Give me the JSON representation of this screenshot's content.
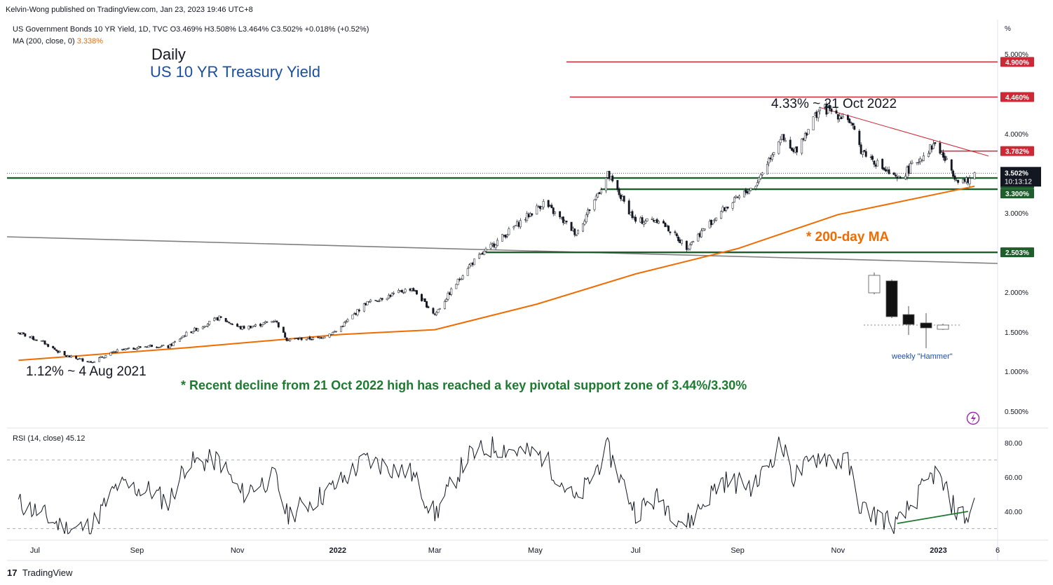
{
  "publisher": "Kelvin-Wong published on TradingView.com, Jan 23, 2023 19:46 UTC+8",
  "legend": {
    "series": "US Government Bonds 10 YR Yield, 1D, TVC",
    "ohlc": "O3.469% H3.508% L3.464% C3.502% +0.018% (+0.52%)",
    "ma_label": "MA (200, close, 0)",
    "ma_value": "3.338%",
    "rsi_label": "RSI (14, close)",
    "rsi_value": "45.12"
  },
  "annotations": {
    "daily": "Daily",
    "title": "US 10 YR Treasury Yield",
    "high": "4.33% ~ 21 Oct 2022",
    "low": "1.12% ~ 4 Aug 2021",
    "ma": "* 200-day MA",
    "note": "* Recent decline from 21 Oct 2022 high has reached a key pivotal support zone of 3.44%/3.30%",
    "hammer": "weekly \"Hammer\""
  },
  "footer": {
    "logo_mark": "17",
    "logo_text": "TradingView"
  },
  "colors": {
    "resistance": "#cc2936",
    "support": "#1e5e2a",
    "ma": "#ef6c00",
    "trend": "#808080",
    "candle": "#131722",
    "price_tag": "#131722"
  },
  "chart_data": [
    {
      "type": "candlestick",
      "name": "US 10 YR Treasury Yield",
      "unit": "%",
      "y_ticks": [
        "5.000%",
        "4.000%",
        "3.000%",
        "2.000%",
        "1.500%",
        "1.000%",
        "0.500%"
      ],
      "y_tick_values": [
        5.0,
        4.0,
        3.0,
        2.0,
        1.5,
        1.0,
        0.5
      ],
      "y_unit_label": "%",
      "x_ticks": [
        "Jul",
        "Sep",
        "Nov",
        "2022",
        "Mar",
        "May",
        "Jul",
        "Sep",
        "Nov",
        "2023",
        "6"
      ],
      "close_path": [
        [
          "2021-06-21",
          1.49
        ],
        [
          "2021-07-06",
          1.37
        ],
        [
          "2021-07-19",
          1.2
        ],
        [
          "2021-08-04",
          1.12
        ],
        [
          "2021-08-20",
          1.26
        ],
        [
          "2021-09-10",
          1.33
        ],
        [
          "2021-09-20",
          1.31
        ],
        [
          "2021-10-01",
          1.48
        ],
        [
          "2021-10-21",
          1.68
        ],
        [
          "2021-11-03",
          1.55
        ],
        [
          "2021-11-12",
          1.58
        ],
        [
          "2021-11-24",
          1.65
        ],
        [
          "2021-12-01",
          1.41
        ],
        [
          "2021-12-20",
          1.42
        ],
        [
          "2021-12-31",
          1.51
        ],
        [
          "2022-01-18",
          1.86
        ],
        [
          "2022-02-15",
          2.05
        ],
        [
          "2022-03-01",
          1.72
        ],
        [
          "2022-03-21",
          2.32
        ],
        [
          "2022-04-06",
          2.61
        ],
        [
          "2022-05-06",
          3.13
        ],
        [
          "2022-05-26",
          2.74
        ],
        [
          "2022-06-14",
          3.48
        ],
        [
          "2022-07-01",
          2.89
        ],
        [
          "2022-07-15",
          2.92
        ],
        [
          "2022-08-01",
          2.57
        ],
        [
          "2022-08-22",
          3.02
        ],
        [
          "2022-09-12",
          3.36
        ],
        [
          "2022-09-27",
          3.96
        ],
        [
          "2022-10-05",
          3.75
        ],
        [
          "2022-10-21",
          4.33
        ],
        [
          "2022-11-07",
          4.2
        ],
        [
          "2022-11-15",
          3.8
        ],
        [
          "2022-12-07",
          3.41
        ],
        [
          "2022-12-30",
          3.88
        ],
        [
          "2023-01-12",
          3.44
        ],
        [
          "2023-01-19",
          3.39
        ],
        [
          "2023-01-23",
          3.502
        ]
      ],
      "ma200_path": [
        [
          "2021-06-21",
          1.14
        ],
        [
          "2021-10-01",
          1.3
        ],
        [
          "2022-01-03",
          1.47
        ],
        [
          "2022-03-01",
          1.53
        ],
        [
          "2022-05-02",
          1.85
        ],
        [
          "2022-07-01",
          2.23
        ],
        [
          "2022-09-01",
          2.55
        ],
        [
          "2022-11-01",
          2.98
        ],
        [
          "2023-01-23",
          3.338
        ]
      ],
      "levels": [
        {
          "label": "4.900%",
          "value": 4.9,
          "role": "resistance"
        },
        {
          "label": "4.460%",
          "value": 4.46,
          "role": "resistance"
        },
        {
          "label": "3.782%",
          "value": 3.782,
          "role": "resistance"
        },
        {
          "label": "3.442%",
          "value": 3.442,
          "role": "support"
        },
        {
          "label": "3.300%",
          "value": 3.3,
          "role": "support"
        },
        {
          "label": "2.503%",
          "value": 2.503,
          "role": "support"
        }
      ],
      "last_price_label": "3.502%",
      "countdown": "10:13:12",
      "high": {
        "date": "2022-10-21",
        "value": 4.33
      },
      "low": {
        "date": "2021-08-04",
        "value": 1.12
      }
    },
    {
      "type": "line",
      "name": "RSI (14, close)",
      "y_ticks": [
        "80.00",
        "60.00",
        "40.00"
      ],
      "y_tick_values": [
        80,
        60,
        40
      ],
      "bands": [
        70,
        30
      ],
      "path": [
        [
          "2021-06-21",
          45
        ],
        [
          "2021-07-06",
          38
        ],
        [
          "2021-07-19",
          30
        ],
        [
          "2021-08-04",
          31
        ],
        [
          "2021-08-20",
          55
        ],
        [
          "2021-09-10",
          52
        ],
        [
          "2021-09-20",
          45
        ],
        [
          "2021-10-01",
          68
        ],
        [
          "2021-10-21",
          70
        ],
        [
          "2021-11-03",
          50
        ],
        [
          "2021-11-12",
          55
        ],
        [
          "2021-11-24",
          60
        ],
        [
          "2021-12-01",
          38
        ],
        [
          "2021-12-20",
          48
        ],
        [
          "2021-12-31",
          55
        ],
        [
          "2022-01-18",
          70
        ],
        [
          "2022-02-15",
          62
        ],
        [
          "2022-03-01",
          38
        ],
        [
          "2022-03-21",
          72
        ],
        [
          "2022-04-06",
          78
        ],
        [
          "2022-05-06",
          72
        ],
        [
          "2022-05-26",
          45
        ],
        [
          "2022-06-14",
          76
        ],
        [
          "2022-07-01",
          40
        ],
        [
          "2022-07-15",
          48
        ],
        [
          "2022-08-01",
          32
        ],
        [
          "2022-08-22",
          58
        ],
        [
          "2022-09-12",
          55
        ],
        [
          "2022-09-27",
          80
        ],
        [
          "2022-10-05",
          60
        ],
        [
          "2022-10-21",
          73
        ],
        [
          "2022-11-07",
          68
        ],
        [
          "2022-11-15",
          42
        ],
        [
          "2022-12-07",
          32
        ],
        [
          "2022-12-30",
          63
        ],
        [
          "2023-01-12",
          40
        ],
        [
          "2023-01-19",
          36
        ],
        [
          "2023-01-23",
          45.12
        ]
      ],
      "divergence_line": [
        [
          "2022-12-07",
          33
        ],
        [
          "2023-01-19",
          40
        ]
      ]
    }
  ]
}
